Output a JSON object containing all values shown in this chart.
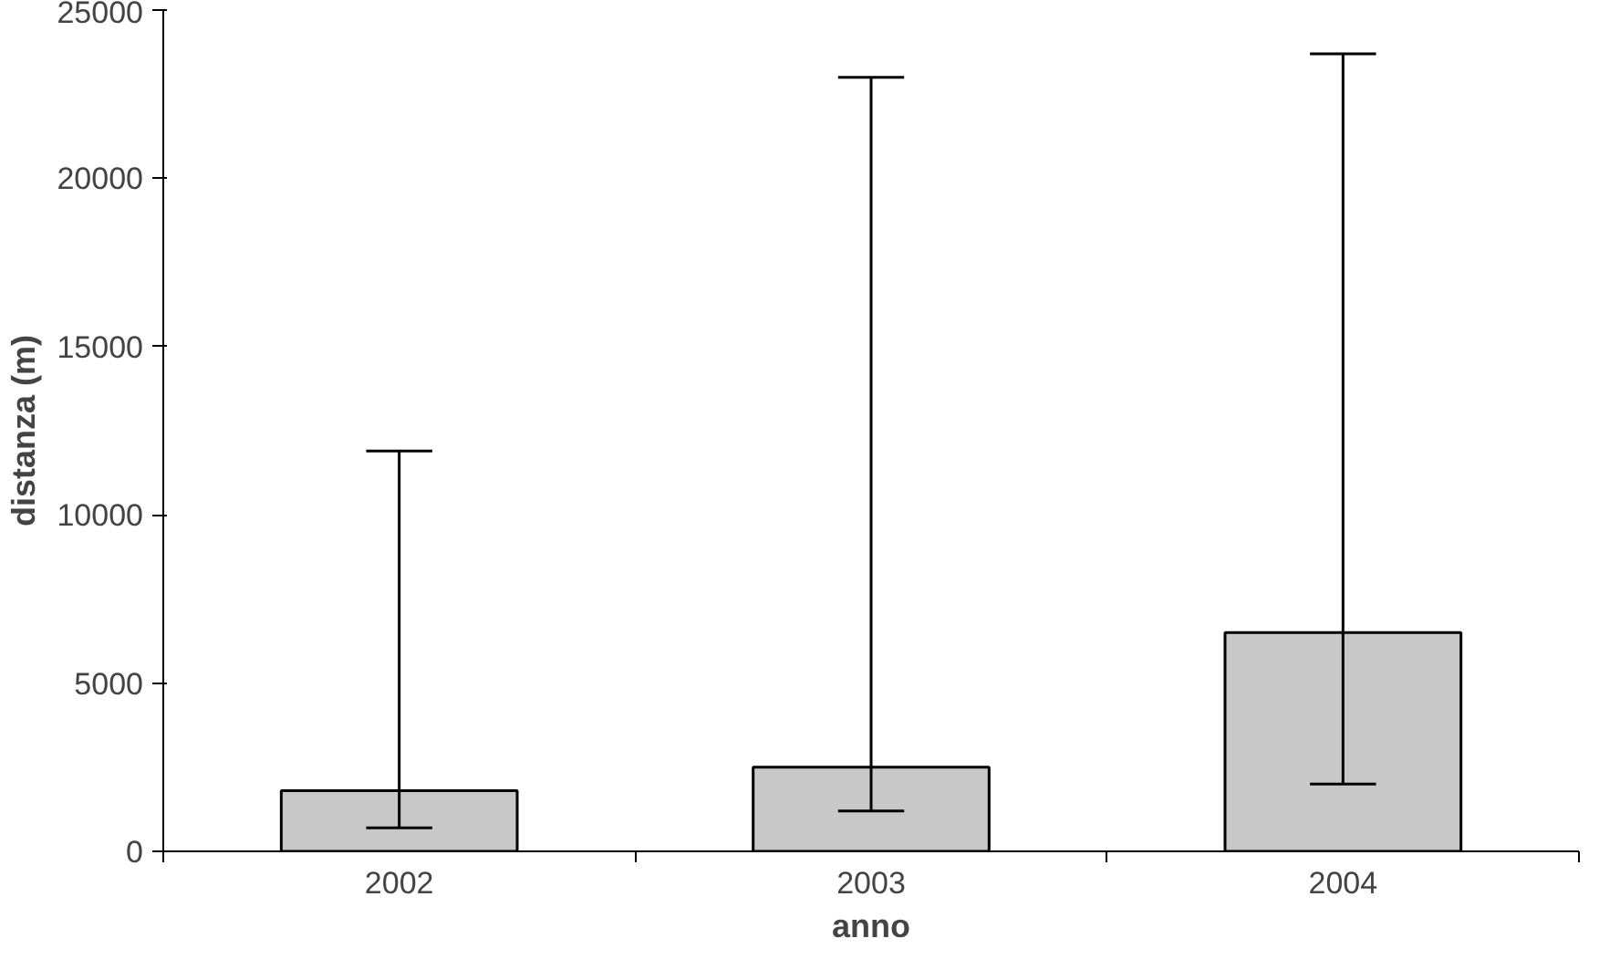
{
  "chart_data": {
    "type": "bar",
    "xlabel": "anno",
    "ylabel": "distanza (m)",
    "categories": [
      "2002",
      "2003",
      "2004"
    ],
    "values": [
      1800,
      2500,
      6500
    ],
    "errors": [
      [
        700,
        11900
      ],
      [
        1200,
        23000
      ],
      [
        2000,
        23700
      ]
    ],
    "color": "#c8c8c8",
    "ylim": [
      0,
      25000
    ],
    "yticks": [
      0,
      5000,
      10000,
      15000,
      20000,
      25000
    ],
    "grid": false
  }
}
